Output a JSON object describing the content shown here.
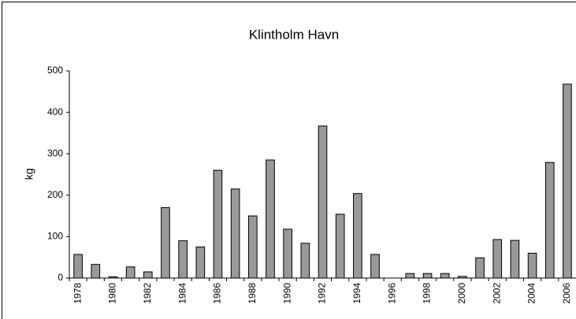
{
  "chart_data": {
    "type": "bar",
    "title": "Klintholm Havn",
    "y_label": "kg",
    "categories": [
      1978,
      null,
      1980,
      null,
      1982,
      null,
      1984,
      null,
      1986,
      null,
      1988,
      null,
      1990,
      null,
      1992,
      null,
      1994,
      null,
      1996,
      null,
      1998,
      null,
      2000,
      null,
      2002,
      null,
      2004,
      null,
      2006
    ],
    "values": [
      57,
      33,
      3,
      27,
      15,
      170,
      90,
      75,
      260,
      215,
      150,
      285,
      118,
      84,
      367,
      154,
      204,
      57,
      0,
      11,
      11,
      11,
      4,
      49,
      93,
      91,
      60,
      279,
      468
    ],
    "color": "#999999",
    "ylim": [
      0,
      500
    ],
    "yticks": [
      0,
      100,
      200,
      300,
      400,
      500
    ],
    "grid": false
  }
}
